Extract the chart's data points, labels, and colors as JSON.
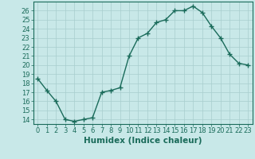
{
  "x": [
    0,
    1,
    2,
    3,
    4,
    5,
    6,
    7,
    8,
    9,
    10,
    11,
    12,
    13,
    14,
    15,
    16,
    17,
    18,
    19,
    20,
    21,
    22,
    23
  ],
  "y": [
    18.5,
    17.2,
    16.0,
    14.0,
    13.8,
    14.0,
    14.2,
    17.0,
    17.2,
    17.5,
    21.0,
    23.0,
    23.5,
    24.7,
    25.0,
    26.0,
    26.0,
    26.5,
    25.8,
    24.3,
    23.0,
    21.2,
    20.2,
    20.0
  ],
  "xlabel": "Humidex (Indice chaleur)",
  "xlim": [
    -0.5,
    23.5
  ],
  "ylim": [
    13.5,
    27.0
  ],
  "yticks": [
    14,
    15,
    16,
    17,
    18,
    19,
    20,
    21,
    22,
    23,
    24,
    25,
    26
  ],
  "xticks": [
    0,
    1,
    2,
    3,
    4,
    5,
    6,
    7,
    8,
    9,
    10,
    11,
    12,
    13,
    14,
    15,
    16,
    17,
    18,
    19,
    20,
    21,
    22,
    23
  ],
  "line_color": "#1a6b5a",
  "marker": "+",
  "bg_color": "#c8e8e8",
  "grid_color": "#a8cece",
  "tick_color": "#1a6b5a",
  "label_color": "#1a6b5a",
  "font_size": 6.0,
  "xlabel_fontsize": 7.5,
  "line_width": 1.0,
  "marker_size": 4,
  "marker_edge_width": 1.0
}
